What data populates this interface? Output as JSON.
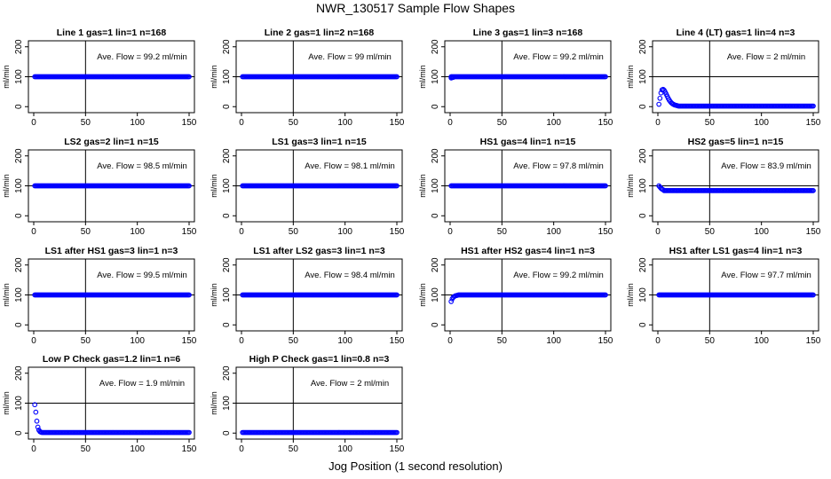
{
  "page": {
    "title": "NWR_130517  Sample Flow Shapes",
    "x_caption": "Jog Position (1 second resolution)"
  },
  "style": {
    "point_color": "#0000ff",
    "background": "#ffffff",
    "axis_color": "#000000"
  },
  "chart_data": [
    {
      "type": "scatter",
      "title": "Line 1 gas=1 lin=1 n=168",
      "annotation": "Ave. Flow = 99.2  ml/min",
      "ylabel": "ml/min",
      "xlim": [
        0,
        150
      ],
      "ylim": [
        -20,
        220
      ],
      "xticks": [
        0,
        50,
        100,
        150
      ],
      "yticks": [
        0,
        100,
        200
      ],
      "vline": 50,
      "hline": 100,
      "grid": false,
      "series": [
        {
          "shape": "flat",
          "x_start": 1,
          "x_end": 150,
          "level": 100
        }
      ]
    },
    {
      "type": "scatter",
      "title": "Line 2 gas=1 lin=2 n=168",
      "annotation": "Ave. Flow = 99  ml/min",
      "ylabel": "ml/min",
      "xlim": [
        0,
        150
      ],
      "ylim": [
        -20,
        220
      ],
      "xticks": [
        0,
        50,
        100,
        150
      ],
      "yticks": [
        0,
        100,
        200
      ],
      "vline": 50,
      "hline": 100,
      "grid": false,
      "series": [
        {
          "shape": "flat",
          "x_start": 1,
          "x_end": 150,
          "level": 100
        }
      ]
    },
    {
      "type": "scatter",
      "title": "Line 3 gas=1 lin=3 n=168",
      "annotation": "Ave. Flow = 99.2  ml/min",
      "ylabel": "ml/min",
      "xlim": [
        0,
        150
      ],
      "ylim": [
        -20,
        220
      ],
      "xticks": [
        0,
        50,
        100,
        150
      ],
      "yticks": [
        0,
        100,
        200
      ],
      "vline": 50,
      "hline": 100,
      "grid": false,
      "series": [
        {
          "shape": "flat",
          "x_start": 1,
          "x_end": 150,
          "level": 100,
          "lead": [
            [
              1,
              96
            ],
            [
              2,
              97
            ],
            [
              3,
              98
            ]
          ]
        }
      ]
    },
    {
      "type": "scatter",
      "title": "Line 4 (LT) gas=1 lin=4 n=3",
      "annotation": "Ave. Flow = 2  ml/min",
      "ylabel": "ml/min",
      "xlim": [
        0,
        150
      ],
      "ylim": [
        -20,
        220
      ],
      "xticks": [
        0,
        50,
        100,
        150
      ],
      "yticks": [
        0,
        100,
        200
      ],
      "vline": 50,
      "hline": 100,
      "grid": false,
      "series": [
        {
          "shape": "flat",
          "x_start": 20,
          "x_end": 150,
          "level": 2,
          "lead": [
            [
              1,
              8
            ],
            [
              2,
              28
            ],
            [
              3,
              46
            ],
            [
              4,
              56
            ],
            [
              5,
              58
            ],
            [
              6,
              55
            ],
            [
              7,
              49
            ],
            [
              8,
              42
            ],
            [
              9,
              35
            ],
            [
              10,
              28
            ],
            [
              11,
              22
            ],
            [
              12,
              17
            ],
            [
              13,
              13
            ],
            [
              14,
              10
            ],
            [
              15,
              8
            ],
            [
              16,
              6
            ],
            [
              17,
              5
            ],
            [
              18,
              4
            ],
            [
              19,
              3
            ]
          ]
        }
      ]
    },
    {
      "type": "scatter",
      "title": "LS2 gas=2 lin=1 n=15",
      "annotation": "Ave. Flow = 98.5  ml/min",
      "ylabel": "ml/min",
      "xlim": [
        0,
        150
      ],
      "ylim": [
        -20,
        220
      ],
      "xticks": [
        0,
        50,
        100,
        150
      ],
      "yticks": [
        0,
        100,
        200
      ],
      "vline": 50,
      "hline": 100,
      "grid": false,
      "series": [
        {
          "shape": "flat",
          "x_start": 1,
          "x_end": 150,
          "level": 100
        }
      ]
    },
    {
      "type": "scatter",
      "title": "LS1 gas=3 lin=1 n=15",
      "annotation": "Ave. Flow = 98.1  ml/min",
      "ylabel": "ml/min",
      "xlim": [
        0,
        150
      ],
      "ylim": [
        -20,
        220
      ],
      "xticks": [
        0,
        50,
        100,
        150
      ],
      "yticks": [
        0,
        100,
        200
      ],
      "vline": 50,
      "hline": 100,
      "grid": false,
      "series": [
        {
          "shape": "flat",
          "x_start": 1,
          "x_end": 150,
          "level": 100
        }
      ]
    },
    {
      "type": "scatter",
      "title": "HS1 gas=4 lin=1 n=15",
      "annotation": "Ave. Flow = 97.8  ml/min",
      "ylabel": "ml/min",
      "xlim": [
        0,
        150
      ],
      "ylim": [
        -20,
        220
      ],
      "xticks": [
        0,
        50,
        100,
        150
      ],
      "yticks": [
        0,
        100,
        200
      ],
      "vline": 50,
      "hline": 100,
      "grid": false,
      "series": [
        {
          "shape": "flat",
          "x_start": 1,
          "x_end": 150,
          "level": 100
        }
      ]
    },
    {
      "type": "scatter",
      "title": "HS2 gas=5 lin=1 n=15",
      "annotation": "Ave. Flow = 83.9  ml/min",
      "ylabel": "ml/min",
      "xlim": [
        0,
        150
      ],
      "ylim": [
        -20,
        220
      ],
      "xticks": [
        0,
        50,
        100,
        150
      ],
      "yticks": [
        0,
        100,
        200
      ],
      "vline": 50,
      "hline": 100,
      "grid": false,
      "series": [
        {
          "shape": "flat",
          "x_start": 6,
          "x_end": 150,
          "level": 84,
          "lead": [
            [
              1,
              100
            ],
            [
              2,
              96
            ],
            [
              3,
              92
            ],
            [
              4,
              89
            ],
            [
              5,
              87
            ]
          ]
        }
      ]
    },
    {
      "type": "scatter",
      "title": "LS1 after HS1 gas=3 lin=1 n=3",
      "annotation": "Ave. Flow = 99.5  ml/min",
      "ylabel": "ml/min",
      "xlim": [
        0,
        150
      ],
      "ylim": [
        -20,
        220
      ],
      "xticks": [
        0,
        50,
        100,
        150
      ],
      "yticks": [
        0,
        100,
        200
      ],
      "vline": 50,
      "hline": 100,
      "grid": false,
      "series": [
        {
          "shape": "flat",
          "x_start": 1,
          "x_end": 150,
          "level": 100
        }
      ]
    },
    {
      "type": "scatter",
      "title": "LS1 after LS2 gas=3 lin=1 n=3",
      "annotation": "Ave. Flow = 98.4  ml/min",
      "ylabel": "ml/min",
      "xlim": [
        0,
        150
      ],
      "ylim": [
        -20,
        220
      ],
      "xticks": [
        0,
        50,
        100,
        150
      ],
      "yticks": [
        0,
        100,
        200
      ],
      "vline": 50,
      "hline": 100,
      "grid": false,
      "series": [
        {
          "shape": "flat",
          "x_start": 1,
          "x_end": 150,
          "level": 100
        }
      ]
    },
    {
      "type": "scatter",
      "title": "HS1 after HS2 gas=4 lin=1 n=3",
      "annotation": "Ave. Flow = 99.2  ml/min",
      "ylabel": "ml/min",
      "xlim": [
        0,
        150
      ],
      "ylim": [
        -20,
        220
      ],
      "xticks": [
        0,
        50,
        100,
        150
      ],
      "yticks": [
        0,
        100,
        200
      ],
      "vline": 50,
      "hline": 100,
      "grid": false,
      "series": [
        {
          "shape": "flat",
          "x_start": 8,
          "x_end": 150,
          "level": 100,
          "lead": [
            [
              1,
              78
            ],
            [
              2,
              87
            ],
            [
              3,
              92
            ],
            [
              4,
              95
            ],
            [
              5,
              97
            ],
            [
              6,
              98
            ],
            [
              7,
              99
            ]
          ]
        }
      ]
    },
    {
      "type": "scatter",
      "title": "HS1 after LS1 gas=4 lin=1 n=3",
      "annotation": "Ave. Flow = 97.7  ml/min",
      "ylabel": "ml/min",
      "xlim": [
        0,
        150
      ],
      "ylim": [
        -20,
        220
      ],
      "xticks": [
        0,
        50,
        100,
        150
      ],
      "yticks": [
        0,
        100,
        200
      ],
      "vline": 50,
      "hline": 100,
      "grid": false,
      "series": [
        {
          "shape": "flat",
          "x_start": 1,
          "x_end": 150,
          "level": 100
        }
      ]
    },
    {
      "type": "scatter",
      "title": "Low P Check gas=1.2 lin=1 n=6",
      "annotation": "Ave. Flow = 1.9  ml/min",
      "ylabel": "ml/min",
      "xlim": [
        0,
        150
      ],
      "ylim": [
        -20,
        220
      ],
      "xticks": [
        0,
        50,
        100,
        150
      ],
      "yticks": [
        0,
        100,
        200
      ],
      "vline": 50,
      "hline": 100,
      "grid": false,
      "series": [
        {
          "shape": "flat",
          "x_start": 8,
          "x_end": 150,
          "level": 2,
          "lead": [
            [
              1,
              95
            ],
            [
              2,
              70
            ],
            [
              3,
              40
            ],
            [
              4,
              20
            ],
            [
              5,
              10
            ],
            [
              6,
              5
            ],
            [
              7,
              3
            ]
          ]
        }
      ]
    },
    {
      "type": "scatter",
      "title": "High P Check gas=1 lin=0.8 n=3",
      "annotation": "Ave. Flow = 2  ml/min",
      "ylabel": "ml/min",
      "xlim": [
        0,
        150
      ],
      "ylim": [
        -20,
        220
      ],
      "xticks": [
        0,
        50,
        100,
        150
      ],
      "yticks": [
        0,
        100,
        200
      ],
      "vline": 50,
      "hline": 100,
      "grid": false,
      "series": [
        {
          "shape": "flat",
          "x_start": 1,
          "x_end": 150,
          "level": 2
        }
      ]
    }
  ]
}
